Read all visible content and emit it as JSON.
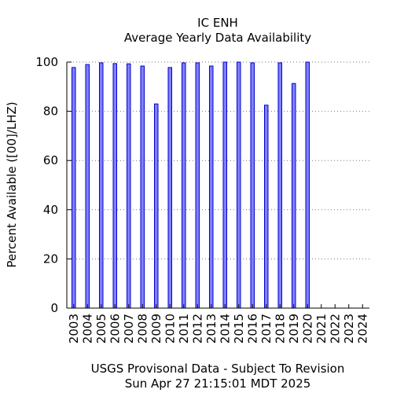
{
  "chart_data": {
    "type": "bar",
    "title": "IC ENH",
    "subtitle": "Average Yearly Data Availability",
    "ylabel": "Percent Available ([00]/LHZ)",
    "xlabel": "USGS Provisonal Data - Subject To Revision",
    "timestamp": "Sun Apr 27 21:15:01 MDT 2025",
    "ylim": [
      0,
      100
    ],
    "yticks": [
      0,
      20,
      40,
      60,
      80,
      100
    ],
    "grid": "horizontal dotted",
    "categories": [
      "2003",
      "2004",
      "2005",
      "2006",
      "2007",
      "2008",
      "2009",
      "2010",
      "2011",
      "2012",
      "2013",
      "2014",
      "2015",
      "2016",
      "2017",
      "2018",
      "2019",
      "2020",
      "2021",
      "2022",
      "2023",
      "2024"
    ],
    "values": [
      97.8,
      99.0,
      99.7,
      99.4,
      99.3,
      98.4,
      83.0,
      97.8,
      99.7,
      99.7,
      98.4,
      100.0,
      100.0,
      99.7,
      82.5,
      99.7,
      91.3,
      100.0,
      null,
      null,
      null,
      null
    ],
    "bar_color": "#8080ff",
    "bar_edge_color": "#0000cc"
  }
}
